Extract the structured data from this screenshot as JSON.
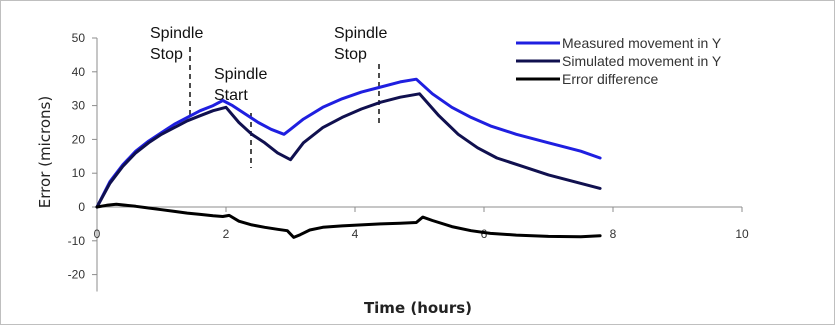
{
  "chart_data": {
    "type": "line",
    "xlabel": "Time (hours)",
    "ylabel": "Error (microns)",
    "xlim": [
      0,
      10
    ],
    "ylim": [
      -25,
      50
    ],
    "x_ticks": [
      "0",
      "2",
      "4",
      "6",
      "8",
      "10"
    ],
    "y_ticks": [
      "-20",
      "-10",
      "0",
      "10",
      "20",
      "30",
      "40",
      "50"
    ],
    "grid": false,
    "legend_position": "top-right",
    "series": [
      {
        "name": "Measured movement in Y",
        "color": "#1f1fe0",
        "x": [
          0,
          0.2,
          0.4,
          0.6,
          0.8,
          1.0,
          1.2,
          1.4,
          1.6,
          1.8,
          1.95,
          2.1,
          2.3,
          2.5,
          2.7,
          2.9,
          3.0,
          3.2,
          3.5,
          3.8,
          4.1,
          4.4,
          4.7,
          4.95,
          5.2,
          5.5,
          5.8,
          6.1,
          6.5,
          7.0,
          7.5,
          7.8
        ],
        "y": [
          0,
          7.5,
          12.5,
          16.5,
          19.5,
          22.0,
          24.5,
          26.5,
          28.5,
          30.0,
          31.5,
          30.0,
          27.5,
          25.0,
          23.0,
          21.5,
          23.0,
          26.0,
          29.5,
          32.0,
          34.0,
          35.5,
          37.0,
          37.8,
          33.5,
          29.5,
          26.5,
          24.0,
          21.5,
          19.0,
          16.5,
          14.5
        ]
      },
      {
        "name": "Simulated movement in Y",
        "color": "#10104f",
        "x": [
          0,
          0.2,
          0.4,
          0.6,
          0.8,
          1.0,
          1.2,
          1.4,
          1.6,
          1.8,
          2.0,
          2.2,
          2.4,
          2.6,
          2.8,
          3.0,
          3.2,
          3.5,
          3.8,
          4.1,
          4.4,
          4.7,
          5.0,
          5.3,
          5.6,
          5.9,
          6.2,
          6.6,
          7.0,
          7.4,
          7.8
        ],
        "y": [
          0,
          7.0,
          12.0,
          16.0,
          19.0,
          21.5,
          23.5,
          25.5,
          27.0,
          28.5,
          29.5,
          25.0,
          21.5,
          19.0,
          16.0,
          14.0,
          19.0,
          23.5,
          26.5,
          29.0,
          31.0,
          32.5,
          33.5,
          27.0,
          21.5,
          17.5,
          14.5,
          12.0,
          9.5,
          7.5,
          5.5
        ]
      },
      {
        "name": "Error difference",
        "color": "#000000",
        "x": [
          0,
          0.15,
          0.3,
          0.45,
          0.6,
          0.8,
          1.0,
          1.2,
          1.4,
          1.6,
          1.8,
          1.95,
          2.05,
          2.2,
          2.4,
          2.6,
          2.8,
          2.95,
          3.05,
          3.15,
          3.3,
          3.5,
          3.8,
          4.1,
          4.4,
          4.7,
          4.95,
          5.05,
          5.2,
          5.5,
          5.8,
          6.1,
          6.5,
          7.0,
          7.5,
          7.8
        ],
        "y": [
          0,
          0.5,
          0.8,
          0.5,
          0.2,
          -0.3,
          -0.8,
          -1.3,
          -1.8,
          -2.2,
          -2.6,
          -2.8,
          -2.5,
          -4.2,
          -5.3,
          -6.0,
          -6.6,
          -7.0,
          -9.0,
          -8.2,
          -6.8,
          -6.0,
          -5.6,
          -5.3,
          -5.0,
          -4.8,
          -4.6,
          -3.0,
          -4.0,
          -5.8,
          -7.0,
          -7.8,
          -8.3,
          -8.7,
          -8.8,
          -8.5
        ]
      }
    ],
    "annotations": [
      {
        "lines": [
          "Spindle",
          "Stop"
        ]
      },
      {
        "lines": [
          "Spindle",
          "Start"
        ]
      },
      {
        "lines": [
          "Spindle",
          "Stop"
        ]
      }
    ]
  }
}
